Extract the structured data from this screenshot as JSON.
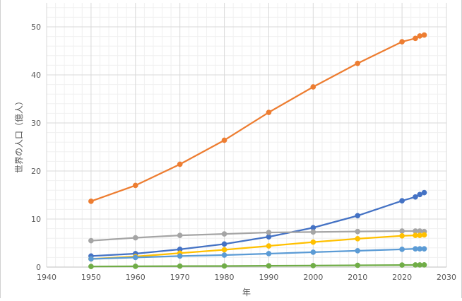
{
  "chart_data": {
    "type": "line",
    "title": "",
    "xlabel": "年",
    "ylabel": "世界の人口（億人）",
    "xlim": [
      1940,
      2030
    ],
    "ylim": [
      0,
      55
    ],
    "xticks": [
      1940,
      1950,
      1960,
      1970,
      1980,
      1990,
      2000,
      2010,
      2020,
      2030
    ],
    "yticks": [
      0,
      10,
      20,
      30,
      40,
      50
    ],
    "grid": true,
    "legend": "none",
    "x": [
      1950,
      1960,
      1970,
      1980,
      1990,
      2000,
      2010,
      2020,
      2023,
      2024,
      2025
    ],
    "series": [
      {
        "color": "#ed7d31",
        "values": [
          13.7,
          17.0,
          21.4,
          26.4,
          32.2,
          37.5,
          42.4,
          46.9,
          47.6,
          48.1,
          48.3
        ]
      },
      {
        "color": "#4472c4",
        "values": [
          2.3,
          2.8,
          3.7,
          4.8,
          6.3,
          8.2,
          10.7,
          13.8,
          14.6,
          15.1,
          15.5
        ]
      },
      {
        "color": "#a5a5a5",
        "values": [
          5.5,
          6.1,
          6.6,
          6.9,
          7.2,
          7.3,
          7.4,
          7.5,
          7.5,
          7.5,
          7.4
        ]
      },
      {
        "color": "#ffc000",
        "values": [
          1.7,
          2.2,
          2.9,
          3.6,
          4.4,
          5.2,
          5.9,
          6.5,
          6.6,
          6.6,
          6.7
        ]
      },
      {
        "color": "#5b9bd5",
        "values": [
          1.7,
          2.0,
          2.3,
          2.5,
          2.8,
          3.1,
          3.4,
          3.7,
          3.8,
          3.8,
          3.8
        ]
      },
      {
        "color": "#70ad47",
        "values": [
          0.13,
          0.16,
          0.2,
          0.23,
          0.27,
          0.31,
          0.37,
          0.43,
          0.45,
          0.45,
          0.46
        ]
      }
    ]
  }
}
